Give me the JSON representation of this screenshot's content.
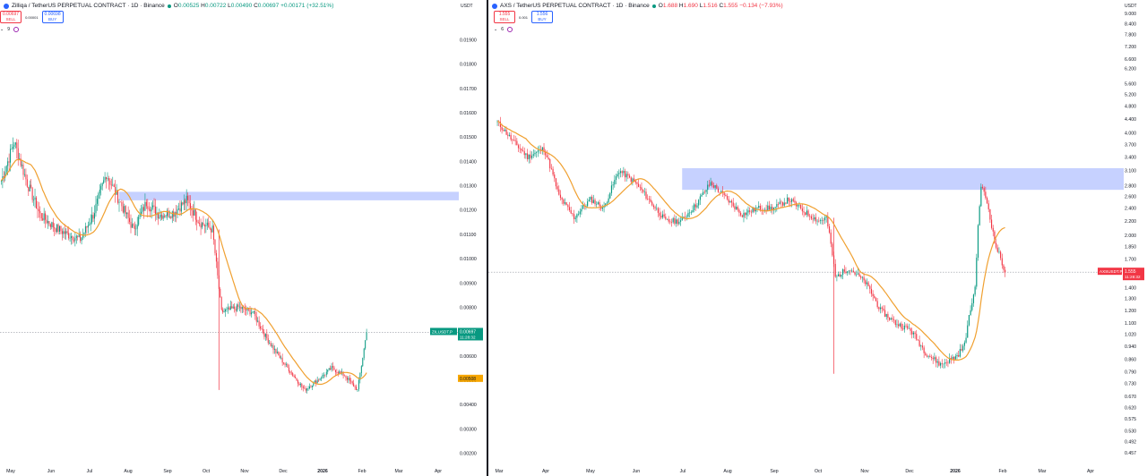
{
  "colors": {
    "up": "#089981",
    "down": "#f23645",
    "ma": "#f0a030",
    "zone": "#b3c1ff",
    "ema": "#f7a600"
  },
  "left": {
    "icon": "zilliqa-logo-icon",
    "title": "Zilliqa / TetherUS PERPETUAL CONTRACT · 1D · Binance",
    "ohlc": {
      "o_label": "O",
      "o": "0.00525",
      "h_label": "H",
      "h": "0.00722",
      "l_label": "L",
      "l": "0.00490",
      "c_label": "C",
      "c": "0.00697",
      "chg": "+0.00171 (+32.51%)"
    },
    "sell_price": "0.00697",
    "sell_label": "SELL",
    "spread": "0.00001",
    "buy_price": "0.00698",
    "buy_label": "BUY",
    "indicator_value": "9",
    "unit": "USDT",
    "price_tag_symbol": "ZILUSDT.P",
    "price_tag_value": "0.00697",
    "price_tag_time": "11:28:32",
    "ma_tag_value": "0.00508"
  },
  "right": {
    "icon": "axs-logo-icon",
    "title": "AXS / TetherUS PERPETUAL CONTRACT · 1D · Binance",
    "ohlc": {
      "o_label": "O",
      "o": "1.688",
      "h_label": "H",
      "h": "1.690",
      "l_label": "L",
      "l": "1.516",
      "c_label": "C",
      "c": "1.555",
      "chg": "−0.134 (−7.93%)"
    },
    "sell_price": "1.555",
    "sell_label": "SELL",
    "spread": "0.001",
    "buy_price": "1.556",
    "buy_label": "BUY",
    "indicator_value": "6",
    "unit": "USDT",
    "price_tag_symbol": "AXSUSDT.P",
    "price_tag_value": "1.555",
    "price_tag_time": "11:28:32"
  },
  "chart_data": [
    {
      "type": "candlestick",
      "title": "Zilliqa / TetherUS PERPETUAL CONTRACT · 1D · Binance",
      "x_ticks": [
        "May",
        "Jun",
        "Jul",
        "Aug",
        "Sep",
        "Oct",
        "Nov",
        "Dec",
        "2026",
        "Feb",
        "Mar",
        "Apr"
      ],
      "y_ticks": [
        "0.01900",
        "0.01800",
        "0.01700",
        "0.01600",
        "0.01500",
        "0.01400",
        "0.01300",
        "0.01200",
        "0.01100",
        "0.01000",
        "0.00900",
        "0.00800",
        "0.00600",
        "0.00500",
        "0.00400",
        "0.00300",
        "0.00200"
      ],
      "ylim": [
        0.0018,
        0.0199
      ],
      "zone": {
        "x_start": "2025-07-25",
        "low": 0.0124,
        "high": 0.01275
      },
      "last_price": 0.00697,
      "ma_last": 0.00508,
      "closes_by_month": [
        {
          "date": "2025-04-25",
          "close": 0.0132
        },
        {
          "date": "2025-05-05",
          "close": 0.0148
        },
        {
          "date": "2025-05-15",
          "close": 0.0131
        },
        {
          "date": "2025-05-25",
          "close": 0.0118
        },
        {
          "date": "2025-06-05",
          "close": 0.0113
        },
        {
          "date": "2025-06-15",
          "close": 0.011
        },
        {
          "date": "2025-06-25",
          "close": 0.0108
        },
        {
          "date": "2025-07-05",
          "close": 0.0118
        },
        {
          "date": "2025-07-15",
          "close": 0.0135
        },
        {
          "date": "2025-07-25",
          "close": 0.0124
        },
        {
          "date": "2025-08-05",
          "close": 0.0112
        },
        {
          "date": "2025-08-15",
          "close": 0.0123
        },
        {
          "date": "2025-08-25",
          "close": 0.0118
        },
        {
          "date": "2025-09-05",
          "close": 0.0119
        },
        {
          "date": "2025-09-15",
          "close": 0.0124
        },
        {
          "date": "2025-09-25",
          "close": 0.0115
        },
        {
          "date": "2025-10-05",
          "close": 0.0112
        },
        {
          "date": "2025-10-12",
          "close": 0.0078
        },
        {
          "date": "2025-10-25",
          "close": 0.008
        },
        {
          "date": "2025-11-05",
          "close": 0.0078
        },
        {
          "date": "2025-11-15",
          "close": 0.0068
        },
        {
          "date": "2025-11-25",
          "close": 0.006
        },
        {
          "date": "2025-12-05",
          "close": 0.0053
        },
        {
          "date": "2025-12-15",
          "close": 0.0046
        },
        {
          "date": "2025-12-25",
          "close": 0.005
        },
        {
          "date": "2026-01-05",
          "close": 0.0055
        },
        {
          "date": "2026-01-15",
          "close": 0.0052
        },
        {
          "date": "2026-01-25",
          "close": 0.0046
        },
        {
          "date": "2026-02-01",
          "close": 0.00697
        }
      ]
    },
    {
      "type": "candlestick",
      "title": "AXS / TetherUS PERPETUAL CONTRACT · 1D · Binance",
      "x_ticks": [
        "Mar",
        "Apr",
        "May",
        "Jun",
        "Jul",
        "Aug",
        "Sep",
        "Oct",
        "Nov",
        "Dec",
        "2026",
        "Feb",
        "Mar",
        "Apr"
      ],
      "y_ticks": [
        "9.000",
        "8.400",
        "7.800",
        "7.200",
        "6.600",
        "6.200",
        "5.600",
        "5.200",
        "4.800",
        "4.400",
        "4.000",
        "3.700",
        "3.400",
        "3.100",
        "2.800",
        "2.600",
        "2.400",
        "2.200",
        "2.000",
        "1.850",
        "1.700",
        "1.550",
        "1.400",
        "1.300",
        "1.200",
        "1.100",
        "1.020",
        "0.940",
        "0.860",
        "0.790",
        "0.730",
        "0.670",
        "0.620",
        "0.575",
        "0.530",
        "0.492",
        "0.457"
      ],
      "y_scale": "log",
      "ylim": [
        0.44,
        9.4
      ],
      "zone": {
        "x_start": "2025-07-01",
        "low": 2.72,
        "high": 3.15
      },
      "last_price": 1.555,
      "closes_by_month": [
        {
          "date": "2025-02-28",
          "close": 4.3
        },
        {
          "date": "2025-03-10",
          "close": 3.8
        },
        {
          "date": "2025-03-20",
          "close": 3.4
        },
        {
          "date": "2025-03-31",
          "close": 3.6
        },
        {
          "date": "2025-04-10",
          "close": 2.6
        },
        {
          "date": "2025-04-20",
          "close": 2.25
        },
        {
          "date": "2025-05-01",
          "close": 2.55
        },
        {
          "date": "2025-05-10",
          "close": 2.4
        },
        {
          "date": "2025-05-20",
          "close": 3.1
        },
        {
          "date": "2025-05-31",
          "close": 2.85
        },
        {
          "date": "2025-06-10",
          "close": 2.5
        },
        {
          "date": "2025-06-20",
          "close": 2.2
        },
        {
          "date": "2025-06-30",
          "close": 2.2
        },
        {
          "date": "2025-07-10",
          "close": 2.45
        },
        {
          "date": "2025-07-20",
          "close": 2.85
        },
        {
          "date": "2025-07-31",
          "close": 2.55
        },
        {
          "date": "2025-08-10",
          "close": 2.3
        },
        {
          "date": "2025-08-20",
          "close": 2.4
        },
        {
          "date": "2025-08-31",
          "close": 2.4
        },
        {
          "date": "2025-09-10",
          "close": 2.55
        },
        {
          "date": "2025-09-20",
          "close": 2.35
        },
        {
          "date": "2025-09-30",
          "close": 2.2
        },
        {
          "date": "2025-10-05",
          "close": 2.25
        },
        {
          "date": "2025-10-11",
          "close": 1.5
        },
        {
          "date": "2025-10-20",
          "close": 1.6
        },
        {
          "date": "2025-10-31",
          "close": 1.45
        },
        {
          "date": "2025-11-10",
          "close": 1.2
        },
        {
          "date": "2025-11-20",
          "close": 1.1
        },
        {
          "date": "2025-11-30",
          "close": 1.05
        },
        {
          "date": "2025-12-10",
          "close": 0.9
        },
        {
          "date": "2025-12-20",
          "close": 0.83
        },
        {
          "date": "2025-12-31",
          "close": 0.88
        },
        {
          "date": "2026-01-05",
          "close": 0.95
        },
        {
          "date": "2026-01-12",
          "close": 1.4
        },
        {
          "date": "2026-01-16",
          "close": 2.8
        },
        {
          "date": "2026-01-20",
          "close": 2.5
        },
        {
          "date": "2026-01-25",
          "close": 1.9
        },
        {
          "date": "2026-02-01",
          "close": 1.555
        }
      ]
    }
  ]
}
